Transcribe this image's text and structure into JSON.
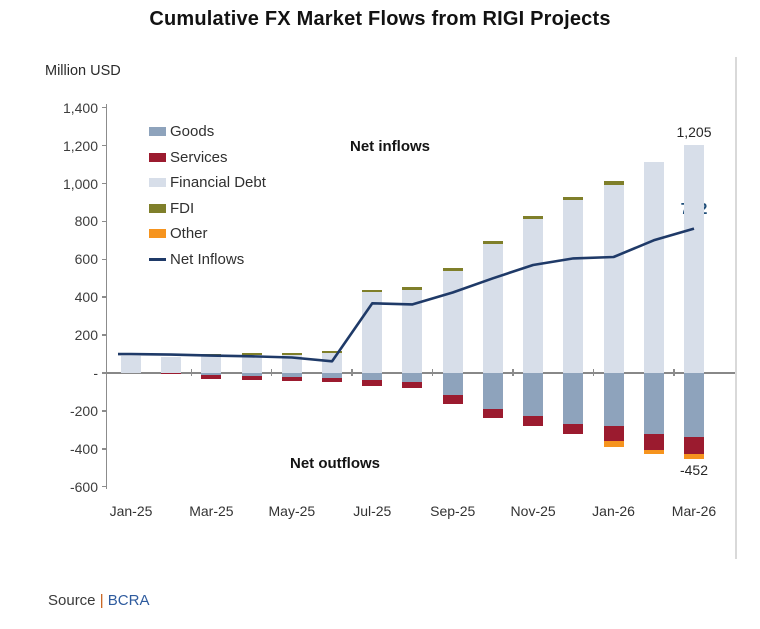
{
  "title": "Cumulative FX Market Flows from RIGI Projects",
  "units_label": "Million USD",
  "annotations": {
    "net_inflows": "Net inflows",
    "net_outflows": "Net outflows",
    "top_callout": "1,205",
    "line_callout": "762",
    "bottom_callout": "-452"
  },
  "source": {
    "prefix": "Source",
    "separator": "|",
    "name": "BCRA"
  },
  "colors": {
    "goods": "#8ea3bc",
    "services": "#9b1b2f",
    "financial_debt": "#d7dee9",
    "fdi": "#7f7f2a",
    "other": "#f6941e",
    "net_inflows_line": "#1f3a68",
    "axis": "#8c8c8c",
    "plot_right_border": "#d9d9d9",
    "source_prefix": "#3a3a3a",
    "source_separator": "#c55a11",
    "source_name": "#2e5b9e"
  },
  "chart_data": {
    "type": "bar",
    "subtype": "stacked-bars-with-line-overlay",
    "title": "Cumulative FX Market Flows from RIGI Projects",
    "ylabel": "Million USD",
    "xlabel": "",
    "grid": false,
    "ylim": [
      -600,
      1400
    ],
    "categories": [
      "Jan-25",
      "Feb-25",
      "Mar-25",
      "Apr-25",
      "May-25",
      "Jun-25",
      "Jul-25",
      "Aug-25",
      "Sep-25",
      "Oct-25",
      "Nov-25",
      "Dec-25",
      "Jan-26",
      "Feb-26",
      "Mar-26"
    ],
    "x_tick_labels": [
      "Jan-25",
      "Mar-25",
      "May-25",
      "Jul-25",
      "Sep-25",
      "Nov-25",
      "Jan-26",
      "Mar-26"
    ],
    "y_ticks": [
      {
        "value": 1400,
        "label": "1,400"
      },
      {
        "value": 1200,
        "label": "1,200"
      },
      {
        "value": 1000,
        "label": "1,000"
      },
      {
        "value": 800,
        "label": "800"
      },
      {
        "value": 600,
        "label": "600"
      },
      {
        "value": 400,
        "label": "400"
      },
      {
        "value": 200,
        "label": "200"
      },
      {
        "value": 0,
        "label": "-"
      },
      {
        "value": -200,
        "label": "-200"
      },
      {
        "value": -400,
        "label": "-400"
      },
      {
        "value": -600,
        "label": "-600"
      }
    ],
    "series": [
      {
        "name": "Goods",
        "render": "bar",
        "color_key": "goods",
        "values": [
          0,
          0,
          -10,
          -16,
          -22,
          -28,
          -39,
          -48,
          -118,
          -189,
          -229,
          -271,
          -282,
          -320,
          -338
        ]
      },
      {
        "name": "Services",
        "render": "bar",
        "color_key": "services",
        "values": [
          0,
          -5,
          -22,
          -19,
          -19,
          -21,
          -30,
          -30,
          -44,
          -47,
          -53,
          -49,
          -78,
          -85,
          -88
        ]
      },
      {
        "name": "Financial Debt",
        "render": "bar",
        "color_key": "financial_debt",
        "values": [
          88,
          82,
          92,
          96,
          96,
          104,
          427,
          440,
          540,
          682,
          815,
          912,
          992,
          1113,
          1205
        ]
      },
      {
        "name": "FDI",
        "render": "bar",
        "color_key": "fdi",
        "values": [
          0,
          0,
          6,
          8,
          8,
          10,
          12,
          13,
          14,
          15,
          16,
          17,
          20,
          0,
          0
        ]
      },
      {
        "name": "Other",
        "render": "bar",
        "color_key": "other",
        "values": [
          0,
          0,
          0,
          0,
          0,
          0,
          0,
          0,
          0,
          0,
          0,
          0,
          -28,
          -25,
          -26
        ]
      },
      {
        "name": "Net Inflows",
        "render": "line",
        "color_key": "net_inflows_line",
        "values": [
          100,
          97,
          92,
          88,
          82,
          62,
          368,
          362,
          425,
          500,
          570,
          605,
          612,
          700,
          762
        ]
      }
    ],
    "stack_order_positive": [
      "Financial Debt",
      "FDI"
    ],
    "stack_order_negative": [
      "Goods",
      "Services",
      "Other"
    ],
    "legend": {
      "position": "top-left-inside",
      "items": [
        "Goods",
        "Services",
        "Financial Debt",
        "FDI",
        "Other",
        "Net Inflows"
      ]
    },
    "callouts": [
      {
        "text": "1,205",
        "attached_to": "Mar-26 positive bar top"
      },
      {
        "text": "762",
        "attached_to": "Net Inflows line end"
      },
      {
        "text": "-452",
        "attached_to": "Mar-26 negative bar bottom"
      }
    ]
  }
}
